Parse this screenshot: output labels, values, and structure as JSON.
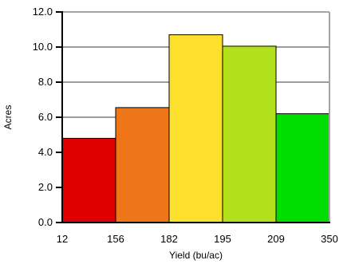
{
  "chart_data": {
    "type": "bar",
    "title": "",
    "xlabel": "Yield (bu/ac)",
    "ylabel": "Acres",
    "ylim": [
      0,
      12
    ],
    "yticks": [
      "0.0",
      "2.0",
      "4.0",
      "6.0",
      "8.0",
      "10.0",
      "12.0"
    ],
    "grid": true,
    "bins": [
      {
        "from": "12",
        "to": "156",
        "value": 4.8,
        "color": "#e00000"
      },
      {
        "from": "156",
        "to": "182",
        "value": 6.55,
        "color": "#ee7518"
      },
      {
        "from": "182",
        "to": "195",
        "value": 10.7,
        "color": "#fde02c"
      },
      {
        "from": "195",
        "to": "209",
        "value": 10.05,
        "color": "#b2e01c"
      },
      {
        "from": "209",
        "to": "350",
        "value": 6.2,
        "color": "#00dc00"
      }
    ],
    "xticks": [
      "12",
      "156",
      "182",
      "195",
      "209",
      "350"
    ]
  }
}
